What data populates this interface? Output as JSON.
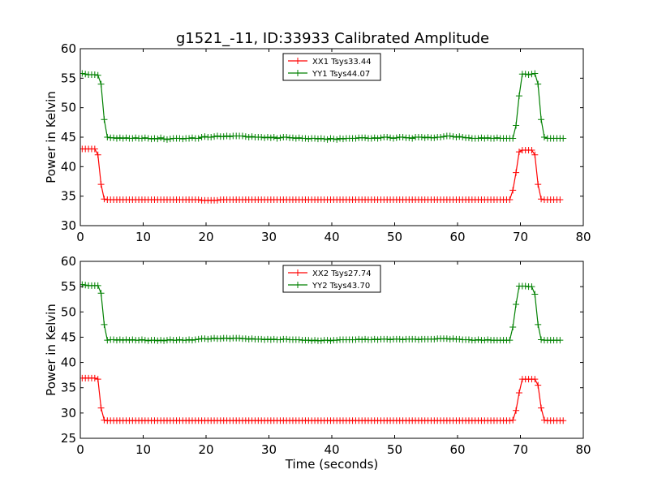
{
  "figure": {
    "title": "g1521_-11, ID:33933 Calibrated Amplitude"
  },
  "chart_data": [
    {
      "type": "line",
      "title": "g1521_-11, ID:33933 Calibrated Amplitude",
      "xlabel": "",
      "ylabel": "Power in Kelvin",
      "xlim": [
        0,
        80
      ],
      "ylim": [
        30,
        60
      ],
      "xticks": [
        0,
        10,
        20,
        30,
        40,
        50,
        60,
        70,
        80
      ],
      "yticks": [
        30,
        35,
        40,
        45,
        50,
        55,
        60
      ],
      "grid": false,
      "legend_position": "top-center",
      "marker": "+",
      "x_start": 0.3,
      "x_step": 0.5,
      "series": [
        {
          "name": "XX1 Tsys33.44",
          "color": "#ff0000",
          "values": [
            43,
            43,
            43,
            43,
            43,
            42,
            37,
            34.5,
            34.4,
            34.4,
            34.4,
            34.4,
            34.4,
            34.4,
            34.4,
            34.4,
            34.4,
            34.4,
            34.4,
            34.4,
            34.4,
            34.4,
            34.4,
            34.4,
            34.4,
            34.4,
            34.4,
            34.4,
            34.4,
            34.4,
            34.4,
            34.4,
            34.4,
            34.4,
            34.4,
            34.4,
            34.4,
            34.4,
            34.3,
            34.3,
            34.3,
            34.3,
            34.3,
            34.3,
            34.4,
            34.4,
            34.4,
            34.4,
            34.4,
            34.4,
            34.4,
            34.4,
            34.4,
            34.4,
            34.4,
            34.4,
            34.4,
            34.4,
            34.4,
            34.4,
            34.4,
            34.4,
            34.4,
            34.4,
            34.4,
            34.4,
            34.4,
            34.4,
            34.4,
            34.4,
            34.4,
            34.4,
            34.4,
            34.4,
            34.4,
            34.4,
            34.4,
            34.4,
            34.4,
            34.4,
            34.4,
            34.4,
            34.4,
            34.4,
            34.4,
            34.4,
            34.4,
            34.4,
            34.4,
            34.4,
            34.4,
            34.4,
            34.4,
            34.4,
            34.4,
            34.4,
            34.4,
            34.4,
            34.4,
            34.4,
            34.4,
            34.4,
            34.4,
            34.4,
            34.4,
            34.4,
            34.4,
            34.4,
            34.4,
            34.4,
            34.4,
            34.4,
            34.4,
            34.4,
            34.4,
            34.4,
            34.4,
            34.4,
            34.4,
            34.4,
            34.4,
            34.4,
            34.4,
            34.4,
            34.4,
            34.4,
            34.4,
            34.4,
            34.4,
            34.4,
            34.4,
            34.4,
            34.4,
            34.4,
            34.4,
            34.4,
            34.4,
            36,
            39,
            42.5,
            42.8,
            42.8,
            42.8,
            42.8,
            42,
            37,
            34.5,
            34.4,
            34.4,
            34.4,
            34.4,
            34.4,
            34.4
          ]
        },
        {
          "name": "YY1 Tsys44.07",
          "color": "#008000",
          "values": [
            55.8,
            55.7,
            55.6,
            55.6,
            55.6,
            55.5,
            54,
            48,
            45,
            44.9,
            44.9,
            44.8,
            44.9,
            44.8,
            44.9,
            44.8,
            44.8,
            44.9,
            44.8,
            44.8,
            44.9,
            44.8,
            44.7,
            44.8,
            44.7,
            44.9,
            44.7,
            44.6,
            44.7,
            44.8,
            44.8,
            44.8,
            44.7,
            44.8,
            44.8,
            44.9,
            44.8,
            44.8,
            45,
            45.1,
            45,
            45,
            45.1,
            45.2,
            45.1,
            45.1,
            45.2,
            45.1,
            45.2,
            45.2,
            45.2,
            45.2,
            45.1,
            45,
            45.1,
            45,
            45,
            45,
            44.9,
            45,
            44.9,
            45,
            44.8,
            44.9,
            45,
            45,
            44.9,
            44.9,
            44.8,
            44.9,
            44.8,
            44.8,
            44.7,
            44.8,
            44.8,
            44.7,
            44.8,
            44.7,
            44.6,
            44.8,
            44.7,
            44.6,
            44.8,
            44.7,
            44.8,
            44.8,
            44.8,
            44.8,
            44.9,
            44.9,
            44.9,
            44.8,
            44.8,
            44.9,
            44.8,
            44.9,
            45,
            45,
            44.9,
            44.8,
            44.9,
            45,
            45,
            44.9,
            44.9,
            44.8,
            45,
            45,
            45,
            44.9,
            45,
            44.9,
            44.9,
            45,
            45,
            45.1,
            45.2,
            45.2,
            45.1,
            45,
            45.1,
            45,
            44.9,
            44.9,
            44.8,
            44.8,
            44.8,
            44.9,
            44.8,
            44.9,
            44.8,
            44.8,
            44.9,
            44.8,
            44.8,
            44.8,
            44.8,
            44.8,
            47,
            52,
            55.7,
            55.7,
            55.6,
            55.7,
            55.8,
            54,
            48,
            45,
            44.8,
            44.8,
            44.8,
            44.8,
            44.8,
            44.8
          ]
        }
      ]
    },
    {
      "type": "line",
      "title": "",
      "xlabel": "Time (seconds)",
      "ylabel": "Power in Kelvin",
      "xlim": [
        0,
        80
      ],
      "ylim": [
        25,
        60
      ],
      "xticks": [
        0,
        10,
        20,
        30,
        40,
        50,
        60,
        70,
        80
      ],
      "yticks": [
        25,
        30,
        35,
        40,
        45,
        50,
        55,
        60
      ],
      "grid": false,
      "legend_position": "top-center",
      "marker": "+",
      "x_start": 0.3,
      "x_step": 0.5,
      "series": [
        {
          "name": "XX2 Tsys27.74",
          "color": "#ff0000",
          "values": [
            36.9,
            36.9,
            36.9,
            36.9,
            36.9,
            36.7,
            31,
            28.6,
            28.5,
            28.5,
            28.5,
            28.5,
            28.5,
            28.5,
            28.5,
            28.5,
            28.5,
            28.5,
            28.5,
            28.5,
            28.5,
            28.5,
            28.5,
            28.5,
            28.5,
            28.5,
            28.5,
            28.5,
            28.5,
            28.5,
            28.5,
            28.5,
            28.5,
            28.5,
            28.5,
            28.5,
            28.5,
            28.5,
            28.5,
            28.5,
            28.5,
            28.5,
            28.5,
            28.5,
            28.5,
            28.5,
            28.5,
            28.5,
            28.5,
            28.5,
            28.5,
            28.5,
            28.5,
            28.5,
            28.5,
            28.5,
            28.5,
            28.5,
            28.5,
            28.5,
            28.5,
            28.5,
            28.5,
            28.5,
            28.5,
            28.5,
            28.5,
            28.5,
            28.5,
            28.5,
            28.5,
            28.5,
            28.5,
            28.5,
            28.5,
            28.5,
            28.5,
            28.5,
            28.5,
            28.5,
            28.5,
            28.5,
            28.5,
            28.5,
            28.5,
            28.5,
            28.5,
            28.5,
            28.5,
            28.5,
            28.5,
            28.5,
            28.5,
            28.5,
            28.5,
            28.5,
            28.5,
            28.5,
            28.5,
            28.5,
            28.5,
            28.5,
            28.5,
            28.5,
            28.5,
            28.5,
            28.5,
            28.5,
            28.5,
            28.5,
            28.5,
            28.5,
            28.5,
            28.5,
            28.5,
            28.5,
            28.5,
            28.5,
            28.5,
            28.5,
            28.5,
            28.5,
            28.5,
            28.5,
            28.5,
            28.5,
            28.5,
            28.5,
            28.5,
            28.5,
            28.5,
            28.5,
            28.5,
            28.5,
            28.5,
            28.5,
            28.5,
            28.6,
            30.5,
            34,
            36.7,
            36.7,
            36.7,
            36.7,
            36.7,
            35.5,
            31,
            28.6,
            28.5,
            28.5,
            28.5,
            28.5,
            28.5,
            28.5
          ]
        },
        {
          "name": "YY2 Tsys43.70",
          "color": "#008000",
          "values": [
            55.4,
            55.3,
            55.2,
            55.2,
            55.2,
            55.2,
            53.7,
            47.5,
            44.4,
            44.5,
            44.5,
            44.4,
            44.5,
            44.4,
            44.5,
            44.4,
            44.5,
            44.4,
            44.4,
            44.5,
            44.4,
            44.3,
            44.4,
            44.4,
            44.3,
            44.4,
            44.3,
            44.4,
            44.5,
            44.4,
            44.4,
            44.5,
            44.4,
            44.4,
            44.5,
            44.4,
            44.5,
            44.6,
            44.7,
            44.7,
            44.6,
            44.7,
            44.8,
            44.7,
            44.7,
            44.8,
            44.8,
            44.7,
            44.8,
            44.8,
            44.8,
            44.7,
            44.7,
            44.6,
            44.7,
            44.6,
            44.6,
            44.6,
            44.5,
            44.6,
            44.5,
            44.6,
            44.5,
            44.5,
            44.6,
            44.6,
            44.5,
            44.5,
            44.5,
            44.5,
            44.4,
            44.4,
            44.4,
            44.3,
            44.4,
            44.3,
            44.3,
            44.4,
            44.4,
            44.3,
            44.4,
            44.4,
            44.5,
            44.5,
            44.5,
            44.5,
            44.5,
            44.5,
            44.6,
            44.5,
            44.6,
            44.5,
            44.5,
            44.6,
            44.5,
            44.6,
            44.6,
            44.6,
            44.5,
            44.6,
            44.6,
            44.6,
            44.5,
            44.6,
            44.6,
            44.6,
            44.6,
            44.5,
            44.6,
            44.6,
            44.6,
            44.6,
            44.6,
            44.7,
            44.7,
            44.7,
            44.7,
            44.6,
            44.7,
            44.6,
            44.6,
            44.5,
            44.5,
            44.5,
            44.4,
            44.4,
            44.5,
            44.4,
            44.4,
            44.5,
            44.4,
            44.4,
            44.4,
            44.4,
            44.4,
            44.4,
            44.4,
            47,
            51.5,
            55.1,
            55.1,
            55.1,
            55,
            55,
            53.5,
            47.5,
            44.5,
            44.4,
            44.4,
            44.4,
            44.4,
            44.4,
            44.4
          ]
        }
      ]
    }
  ]
}
